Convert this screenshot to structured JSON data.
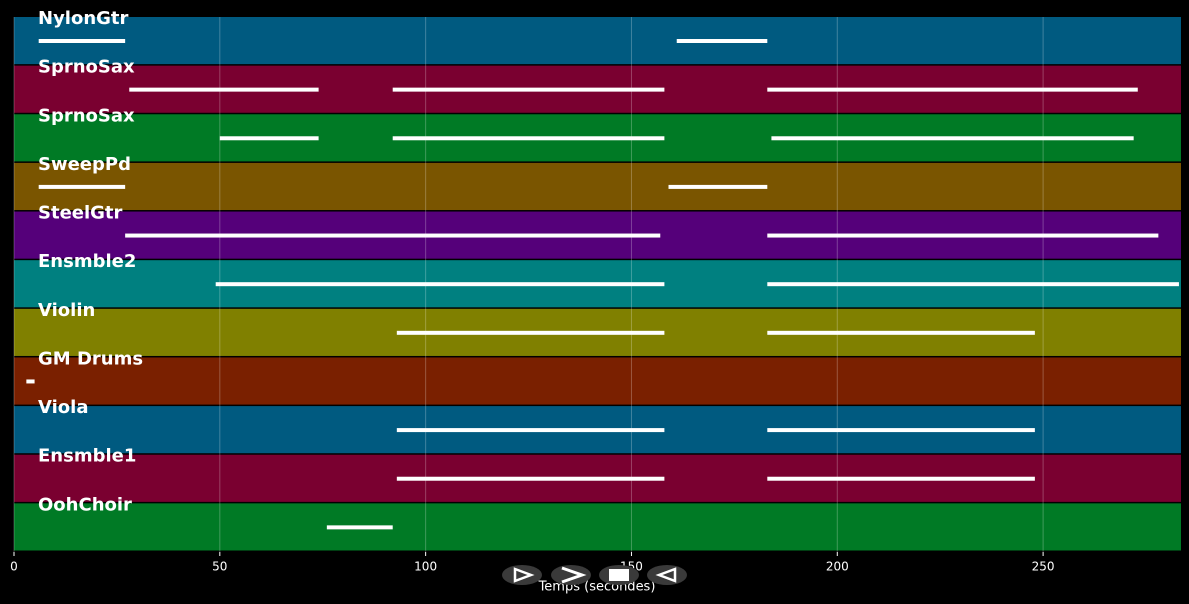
{
  "chart_data": {
    "type": "pianoroll",
    "xlabel": "Temps (secondes)",
    "xlim": [
      0,
      283.5
    ],
    "xticks": [
      0,
      50,
      100,
      150,
      200,
      250
    ],
    "grid": true,
    "tracks": [
      {
        "name": "NylonGtr",
        "color": "#005a80",
        "segments": [
          [
            6,
            27
          ],
          [
            161,
            183
          ]
        ]
      },
      {
        "name": "SprnoSax",
        "color": "#7a0030",
        "segments": [
          [
            28,
            74
          ],
          [
            92,
            158
          ],
          [
            183,
            273
          ]
        ]
      },
      {
        "name": "SprnoSax",
        "color": "#007a25",
        "segments": [
          [
            50,
            74
          ],
          [
            92,
            158
          ],
          [
            184,
            272
          ]
        ]
      },
      {
        "name": "SweepPd",
        "color": "#7a5500",
        "segments": [
          [
            6,
            27
          ],
          [
            159,
            183
          ]
        ]
      },
      {
        "name": "SteelGtr",
        "color": "#55007a",
        "segments": [
          [
            27,
            157
          ],
          [
            183,
            278
          ]
        ]
      },
      {
        "name": "Ensmble2",
        "color": "#008080",
        "segments": [
          [
            49,
            158
          ],
          [
            183,
            283
          ]
        ]
      },
      {
        "name": "Violin",
        "color": "#808000",
        "segments": [
          [
            93,
            158
          ],
          [
            183,
            248
          ]
        ]
      },
      {
        "name": "GM Drums",
        "color": "#7a2000",
        "segments": [
          [
            3,
            5
          ]
        ]
      },
      {
        "name": "Viola",
        "color": "#005a80",
        "segments": [
          [
            93,
            158
          ],
          [
            183,
            248
          ]
        ]
      },
      {
        "name": "Ensmble1",
        "color": "#7a0030",
        "segments": [
          [
            93,
            158
          ],
          [
            183,
            248
          ]
        ]
      },
      {
        "name": "OohChoir",
        "color": "#007a25",
        "segments": [
          [
            76,
            92
          ]
        ]
      }
    ]
  }
}
